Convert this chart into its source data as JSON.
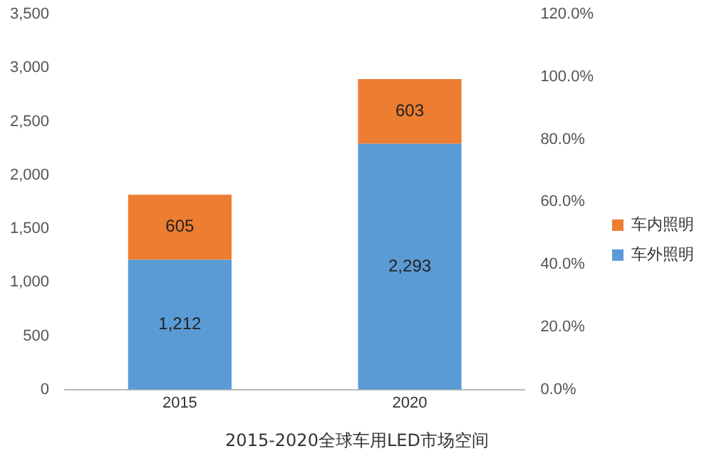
{
  "chart_data": {
    "type": "bar",
    "title": "2015-2020全球车用LED市场空间",
    "categories": [
      "2015",
      "2020"
    ],
    "series": [
      {
        "name": "车外照明",
        "color": "#5b9bd5",
        "values": [
          1212,
          2293
        ],
        "value_labels": [
          "1,212",
          "2,293"
        ]
      },
      {
        "name": "车内照明",
        "color": "#ed7d31",
        "values": [
          605,
          603
        ],
        "value_labels": [
          "605",
          "603"
        ]
      }
    ],
    "stacked": true,
    "ylim": [
      0,
      3500
    ],
    "yticks": [
      {
        "value": 0,
        "label": "0"
      },
      {
        "value": 500,
        "label": "500"
      },
      {
        "value": 1000,
        "label": "1,000"
      },
      {
        "value": 1500,
        "label": "1,500"
      },
      {
        "value": 2000,
        "label": "2,000"
      },
      {
        "value": 2500,
        "label": "2,500"
      },
      {
        "value": 3000,
        "label": "3,000"
      },
      {
        "value": 3500,
        "label": "3,500"
      }
    ],
    "y2lim": [
      0,
      120
    ],
    "y2ticks": [
      {
        "value": 0,
        "label": "0.0%"
      },
      {
        "value": 20,
        "label": "20.0%"
      },
      {
        "value": 40,
        "label": "40.0%"
      },
      {
        "value": 60,
        "label": "60.0%"
      },
      {
        "value": 80,
        "label": "80.0%"
      },
      {
        "value": 100,
        "label": "100.0%"
      },
      {
        "value": 120,
        "label": "120.0%"
      }
    ],
    "grid": false,
    "legend": "right"
  }
}
